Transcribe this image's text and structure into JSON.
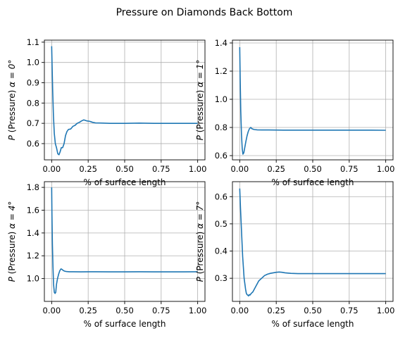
{
  "figure": {
    "title": "Pressure on Diamonds Back Bottom"
  },
  "chart_data": [
    {
      "type": "line",
      "xlabel": "% of surface length",
      "ylabel": "$P$ (Pressure) $\\alpha = 0°$",
      "xlim": [
        -0.05,
        1.05
      ],
      "ylim": [
        0.52,
        1.11
      ],
      "xticks": [
        0.0,
        0.25,
        0.5,
        0.75,
        1.0
      ],
      "xtick_labels": [
        "0.00",
        "0.25",
        "0.50",
        "0.75",
        "1.00"
      ],
      "yticks": [
        0.6,
        0.7,
        0.8,
        0.9,
        1.0,
        1.1
      ],
      "ytick_labels": [
        "0.6",
        "0.7",
        "0.8",
        "0.9",
        "1.0",
        "1.1"
      ],
      "grid": true,
      "color": "#1f77b4",
      "series": [
        {
          "x": [
            0.0,
            0.003,
            0.007,
            0.012,
            0.018,
            0.025,
            0.033,
            0.042,
            0.05,
            0.058,
            0.066,
            0.075,
            0.085,
            0.095,
            0.105,
            0.115,
            0.13,
            0.145,
            0.16,
            0.175,
            0.19,
            0.205,
            0.22,
            0.24,
            0.26,
            0.28,
            0.3,
            0.35,
            0.4,
            0.5,
            0.6,
            0.7,
            0.8,
            0.9,
            1.0
          ],
          "y": [
            1.08,
            0.98,
            0.86,
            0.74,
            0.65,
            0.6,
            0.58,
            0.55,
            0.545,
            0.56,
            0.58,
            0.58,
            0.6,
            0.64,
            0.66,
            0.67,
            0.672,
            0.685,
            0.69,
            0.7,
            0.705,
            0.712,
            0.717,
            0.712,
            0.71,
            0.705,
            0.702,
            0.701,
            0.7,
            0.7,
            0.701,
            0.7,
            0.7,
            0.7,
            0.7
          ]
        }
      ]
    },
    {
      "type": "line",
      "xlabel": "% of surface length",
      "ylabel": "$P$ (Pressure) $\\alpha = 1°$",
      "xlim": [
        -0.05,
        1.05
      ],
      "ylim": [
        0.57,
        1.42
      ],
      "xticks": [
        0.0,
        0.25,
        0.5,
        0.75,
        1.0
      ],
      "xtick_labels": [
        "0.00",
        "0.25",
        "0.50",
        "0.75",
        "1.00"
      ],
      "yticks": [
        0.6,
        0.8,
        1.0,
        1.2,
        1.4
      ],
      "ytick_labels": [
        "0.6",
        "0.8",
        "1.0",
        "1.2",
        "1.4"
      ],
      "grid": true,
      "color": "#1f77b4",
      "series": [
        {
          "x": [
            0.0,
            0.003,
            0.007,
            0.012,
            0.017,
            0.022,
            0.028,
            0.035,
            0.042,
            0.05,
            0.058,
            0.066,
            0.075,
            0.085,
            0.1,
            0.12,
            0.15,
            0.2,
            0.3,
            0.4,
            0.5,
            0.6,
            0.7,
            0.8,
            0.9,
            1.0
          ],
          "y": [
            1.37,
            1.15,
            0.92,
            0.75,
            0.65,
            0.61,
            0.62,
            0.66,
            0.7,
            0.74,
            0.77,
            0.79,
            0.8,
            0.79,
            0.785,
            0.783,
            0.782,
            0.782,
            0.781,
            0.781,
            0.781,
            0.781,
            0.781,
            0.781,
            0.781,
            0.78
          ]
        }
      ]
    },
    {
      "type": "line",
      "xlabel": "% of surface length",
      "ylabel": "$P$ (Pressure) $\\alpha = 4°$",
      "xlim": [
        -0.05,
        1.05
      ],
      "ylim": [
        0.8,
        1.85
      ],
      "xticks": [
        0.0,
        0.25,
        0.5,
        0.75,
        1.0
      ],
      "xtick_labels": [
        "0.00",
        "0.25",
        "0.50",
        "0.75",
        "1.00"
      ],
      "yticks": [
        1.0,
        1.2,
        1.4,
        1.6,
        1.8
      ],
      "ytick_labels": [
        "1.0",
        "1.2",
        "1.4",
        "1.6",
        "1.8"
      ],
      "grid": true,
      "color": "#1f77b4",
      "series": [
        {
          "x": [
            0.0,
            0.002,
            0.005,
            0.009,
            0.013,
            0.018,
            0.023,
            0.028,
            0.033,
            0.04,
            0.048,
            0.056,
            0.064,
            0.072,
            0.08,
            0.09,
            0.1,
            0.12,
            0.15,
            0.2,
            0.3,
            0.4,
            0.5,
            0.6,
            0.7,
            0.8,
            0.9,
            1.0
          ],
          "y": [
            1.8,
            1.55,
            1.3,
            1.1,
            0.95,
            0.88,
            0.87,
            0.88,
            0.95,
            1.0,
            1.04,
            1.07,
            1.085,
            1.08,
            1.07,
            1.065,
            1.062,
            1.06,
            1.06,
            1.059,
            1.06,
            1.059,
            1.059,
            1.06,
            1.059,
            1.059,
            1.059,
            1.06
          ]
        }
      ]
    },
    {
      "type": "line",
      "xlabel": "% of surface length",
      "ylabel": "$P$ (Pressure) $\\alpha = 7°$",
      "xlim": [
        -0.05,
        1.05
      ],
      "ylim": [
        0.215,
        0.655
      ],
      "xticks": [
        0.0,
        0.25,
        0.5,
        0.75,
        1.0
      ],
      "xtick_labels": [
        "0.00",
        "0.25",
        "0.50",
        "0.75",
        "1.00"
      ],
      "yticks": [
        0.3,
        0.4,
        0.5,
        0.6
      ],
      "ytick_labels": [
        "0.3",
        "0.4",
        "0.5",
        "0.6"
      ],
      "grid": true,
      "color": "#1f77b4",
      "series": [
        {
          "x": [
            0.0,
            0.005,
            0.01,
            0.015,
            0.02,
            0.025,
            0.03,
            0.035,
            0.04,
            0.045,
            0.05,
            0.055,
            0.06,
            0.065,
            0.07,
            0.08,
            0.09,
            0.1,
            0.11,
            0.12,
            0.13,
            0.14,
            0.15,
            0.17,
            0.19,
            0.21,
            0.23,
            0.25,
            0.27,
            0.29,
            0.31,
            0.35,
            0.4,
            0.5,
            0.6,
            0.7,
            0.8,
            0.9,
            1.0
          ],
          "y": [
            0.63,
            0.56,
            0.5,
            0.44,
            0.38,
            0.34,
            0.3,
            0.28,
            0.26,
            0.245,
            0.24,
            0.238,
            0.235,
            0.24,
            0.238,
            0.245,
            0.25,
            0.26,
            0.27,
            0.28,
            0.29,
            0.295,
            0.3,
            0.31,
            0.315,
            0.318,
            0.32,
            0.322,
            0.323,
            0.322,
            0.32,
            0.318,
            0.317,
            0.317,
            0.317,
            0.317,
            0.317,
            0.317,
            0.317
          ]
        }
      ]
    }
  ]
}
